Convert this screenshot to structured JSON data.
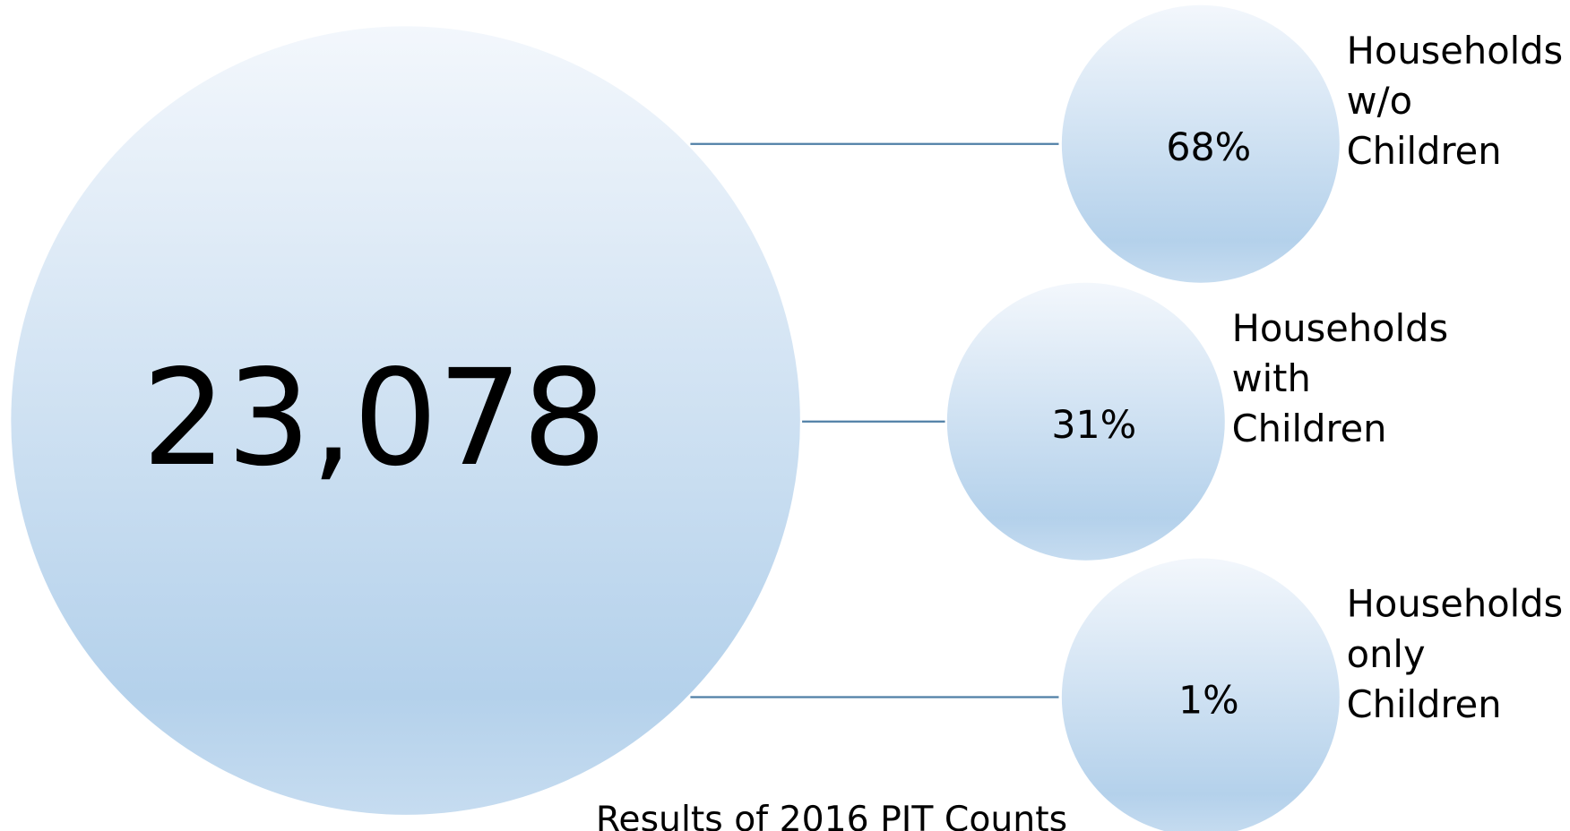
{
  "total": "23,078",
  "caption": "Results of 2016 PIT Counts",
  "groups": [
    {
      "percent": "68%",
      "label": [
        "Households",
        "w/o",
        "Children"
      ]
    },
    {
      "percent": "31%",
      "label": [
        "Households",
        "with",
        "Children"
      ]
    },
    {
      "percent": "1%",
      "label": [
        "Households",
        "only",
        "Children"
      ]
    }
  ]
}
